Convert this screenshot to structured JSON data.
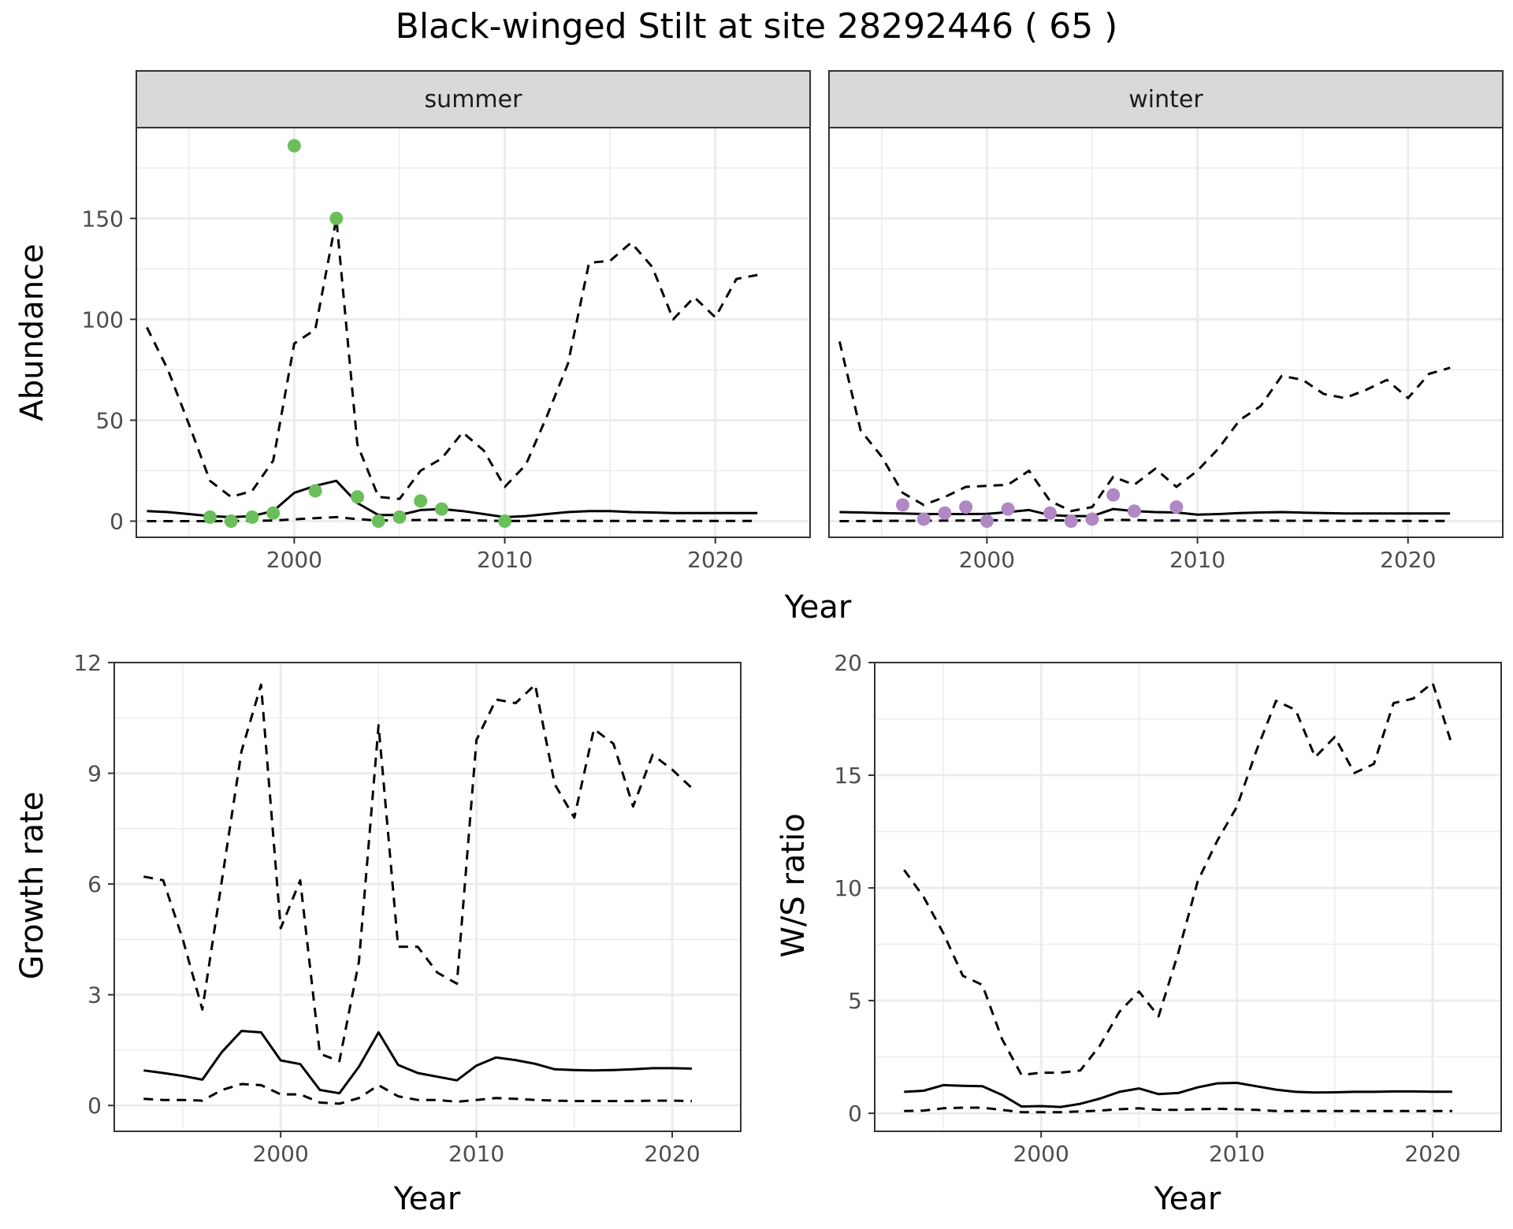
{
  "title": "Black-winged Stilt at site 28292446 ( 65 )",
  "colors": {
    "summer_points": "#6abf5a",
    "winter_points": "#b088c4",
    "lines": "#000000",
    "strip_fill": "#d9d9d9",
    "grid": "#ebebeb"
  },
  "chart_data": [
    {
      "type": "line",
      "panel": "abundance",
      "facets": [
        "summer",
        "winter"
      ],
      "xlabel": "Year",
      "ylabel": "Abundance",
      "xlim": [
        1992.5,
        2024.5
      ],
      "ylim": [
        -8,
        195
      ],
      "xticks": [
        2000,
        2010,
        2020
      ],
      "yticks": [
        0,
        50,
        100,
        150
      ],
      "series": {
        "summer": {
          "observed": {
            "x": [
              1996,
              1997,
              1998,
              1999,
              2000,
              2001,
              2002,
              2003,
              2004,
              2005,
              2006,
              2007,
              2010
            ],
            "y": [
              2,
              0,
              2,
              4,
              186,
              15,
              150,
              12,
              0,
              2,
              10,
              6,
              0
            ]
          },
          "mean": {
            "x": [
              1993,
              1994,
              1995,
              1996,
              1997,
              1998,
              1999,
              2000,
              2001,
              2002,
              2003,
              2004,
              2005,
              2006,
              2007,
              2008,
              2009,
              2010,
              2011,
              2012,
              2013,
              2014,
              2015,
              2016,
              2017,
              2018,
              2019,
              2020,
              2021,
              2022
            ],
            "y": [
              5,
              4.5,
              3.5,
              2.5,
              2,
              2.5,
              5,
              14,
              17.5,
              20,
              9,
              3,
              3,
              5.5,
              6,
              5,
              3.5,
              2,
              2.5,
              3.5,
              4.5,
              5,
              5,
              4.5,
              4.3,
              4,
              4,
              4,
              4,
              4
            ]
          },
          "upper": {
            "x": [
              1993,
              1994,
              1995,
              1996,
              1997,
              1998,
              1999,
              2000,
              2001,
              2002,
              2003,
              2004,
              2005,
              2006,
              2007,
              2008,
              2009,
              2010,
              2011,
              2012,
              2013,
              2014,
              2015,
              2016,
              2017,
              2018,
              2019,
              2020,
              2021,
              2022
            ],
            "y": [
              96,
              75,
              48,
              20,
              12,
              15,
              30,
              88,
              95,
              150,
              38,
              12,
              11,
              25,
              31,
              44,
              35,
              17,
              28,
              52,
              78,
              128,
              129,
              138,
              126,
              100,
              111,
              101,
              120,
              122
            ]
          },
          "lower": {
            "x": [
              1993,
              1996,
              1999,
              2001,
              2002,
              2003,
              2004,
              2006,
              2008,
              2010,
              2022
            ],
            "y": [
              0,
              0,
              0.3,
              1.5,
              2,
              1,
              0.3,
              0.6,
              0.5,
              0.1,
              0.1
            ]
          }
        },
        "winter": {
          "observed": {
            "x": [
              1996,
              1997,
              1998,
              1999,
              2000,
              2001,
              2003,
              2004,
              2005,
              2006,
              2007,
              2009
            ],
            "y": [
              8,
              1,
              4,
              7,
              0,
              6,
              4,
              0,
              1,
              13,
              5,
              7
            ]
          },
          "mean": {
            "x": [
              1993,
              1994,
              1995,
              1996,
              1997,
              1998,
              1999,
              2000,
              2001,
              2002,
              2003,
              2004,
              2005,
              2006,
              2007,
              2008,
              2009,
              2010,
              2011,
              2012,
              2013,
              2014,
              2015,
              2016,
              2017,
              2018,
              2019,
              2020,
              2021,
              2022
            ],
            "y": [
              4.5,
              4.3,
              4,
              3.8,
              3.5,
              3.5,
              3.5,
              3.6,
              4.5,
              5.5,
              3,
              2.5,
              2.5,
              6,
              5,
              4.5,
              4.3,
              3.2,
              3.5,
              4,
              4.3,
              4.5,
              4.2,
              4,
              3.8,
              3.8,
              3.8,
              3.8,
              3.8,
              3.8
            ]
          },
          "upper": {
            "x": [
              1993,
              1994,
              1995,
              1996,
              1997,
              1998,
              1999,
              2000,
              2001,
              2002,
              2003,
              2004,
              2005,
              2006,
              2007,
              2008,
              2009,
              2010,
              2011,
              2012,
              2013,
              2014,
              2015,
              2016,
              2017,
              2018,
              2019,
              2020,
              2021,
              2022
            ],
            "y": [
              89,
              45,
              32,
              14,
              8,
              12,
              17,
              17.5,
              18,
              25,
              10,
              5,
              7,
              22,
              18,
              26,
              17,
              25,
              36,
              50,
              57,
              72,
              70,
              63,
              61,
              65,
              70,
              61,
              73,
              76
            ]
          },
          "lower": {
            "x": [
              1993,
              1999,
              2001,
              2003,
              2005,
              2006,
              2008,
              2022
            ],
            "y": [
              0,
              0.3,
              0.5,
              0.4,
              0.3,
              0.7,
              0.3,
              0.1
            ]
          }
        }
      }
    },
    {
      "type": "line",
      "panel": "growth",
      "xlabel": "Year",
      "ylabel": "Growth rate",
      "xlim": [
        1991.5,
        2023.5
      ],
      "ylim": [
        -0.7,
        12
      ],
      "xticks": [
        2000,
        2010,
        2020
      ],
      "yticks": [
        0,
        3,
        6,
        9,
        12
      ],
      "series": {
        "mean": {
          "x": [
            1993,
            1994,
            1995,
            1996,
            1997,
            1998,
            1999,
            2000,
            2001,
            2002,
            2003,
            2004,
            2005,
            2006,
            2007,
            2008,
            2009,
            2010,
            2011,
            2012,
            2013,
            2014,
            2015,
            2016,
            2017,
            2018,
            2019,
            2020,
            2021
          ],
          "y": [
            0.95,
            0.88,
            0.8,
            0.7,
            1.45,
            2.02,
            1.98,
            1.22,
            1.12,
            0.42,
            0.33,
            1.05,
            1.98,
            1.1,
            0.88,
            0.78,
            0.68,
            1.08,
            1.3,
            1.23,
            1.13,
            0.98,
            0.96,
            0.95,
            0.96,
            0.98,
            1.01,
            1.01,
            1.0
          ]
        },
        "upper": {
          "x": [
            1993,
            1994,
            1995,
            1996,
            1997,
            1998,
            1999,
            2000,
            2001,
            2002,
            2003,
            2004,
            2005,
            2006,
            2007,
            2008,
            2009,
            2010,
            2011,
            2012,
            2013,
            2014,
            2015,
            2016,
            2017,
            2018,
            2019,
            2020,
            2021
          ],
          "y": [
            6.2,
            6.1,
            4.5,
            2.6,
            6.1,
            9.6,
            11.4,
            4.8,
            6.1,
            1.4,
            1.2,
            3.9,
            10.3,
            4.3,
            4.3,
            3.6,
            3.3,
            9.9,
            11.0,
            10.9,
            11.4,
            8.7,
            7.8,
            10.2,
            9.8,
            8.1,
            9.5,
            9.1,
            8.6
          ]
        },
        "lower": {
          "x": [
            1993,
            1994,
            1995,
            1996,
            1997,
            1998,
            1999,
            2000,
            2001,
            2002,
            2003,
            2004,
            2005,
            2006,
            2007,
            2008,
            2009,
            2010,
            2011,
            2012,
            2013,
            2014,
            2015,
            2016,
            2017,
            2018,
            2019,
            2020,
            2021
          ],
          "y": [
            0.18,
            0.15,
            0.15,
            0.13,
            0.42,
            0.58,
            0.55,
            0.3,
            0.3,
            0.08,
            0.05,
            0.2,
            0.55,
            0.25,
            0.15,
            0.15,
            0.1,
            0.15,
            0.2,
            0.18,
            0.15,
            0.13,
            0.12,
            0.12,
            0.12,
            0.12,
            0.13,
            0.13,
            0.12
          ]
        }
      }
    },
    {
      "type": "line",
      "panel": "ws_ratio",
      "xlabel": "Year",
      "ylabel": "W/S ratio",
      "xlim": [
        1991.5,
        2023.5
      ],
      "ylim": [
        -0.8,
        20
      ],
      "xticks": [
        2000,
        2010,
        2020
      ],
      "yticks": [
        0,
        5,
        10,
        15,
        20
      ],
      "series": {
        "mean": {
          "x": [
            1993,
            1994,
            1995,
            1996,
            1997,
            1998,
            1999,
            2000,
            2001,
            2002,
            2003,
            2004,
            2005,
            2006,
            2007,
            2008,
            2009,
            2010,
            2011,
            2012,
            2013,
            2014,
            2015,
            2016,
            2017,
            2018,
            2019,
            2020,
            2021
          ],
          "y": [
            0.95,
            1.0,
            1.25,
            1.22,
            1.2,
            0.82,
            0.3,
            0.32,
            0.28,
            0.42,
            0.65,
            0.95,
            1.1,
            0.85,
            0.9,
            1.15,
            1.33,
            1.35,
            1.2,
            1.05,
            0.95,
            0.92,
            0.93,
            0.95,
            0.95,
            0.97,
            0.97,
            0.96,
            0.96
          ]
        },
        "upper": {
          "x": [
            1993,
            1994,
            1995,
            1996,
            1997,
            1998,
            1999,
            2000,
            2001,
            2002,
            2003,
            2004,
            2005,
            2006,
            2007,
            2008,
            2009,
            2010,
            2011,
            2012,
            2013,
            2014,
            2015,
            2016,
            2017,
            2018,
            2019,
            2020,
            2021
          ],
          "y": [
            10.8,
            9.6,
            8.0,
            6.1,
            5.7,
            3.3,
            1.7,
            1.8,
            1.8,
            1.9,
            3.0,
            4.5,
            5.4,
            4.3,
            7.1,
            10.3,
            12.1,
            13.6,
            16.1,
            18.3,
            17.9,
            15.8,
            16.7,
            15.1,
            15.5,
            18.2,
            18.4,
            19.1,
            16.3
          ]
        },
        "lower": {
          "x": [
            1993,
            1994,
            1995,
            1996,
            1997,
            1998,
            1999,
            2000,
            2001,
            2002,
            2003,
            2004,
            2005,
            2006,
            2007,
            2008,
            2009,
            2010,
            2011,
            2012,
            2013,
            2014,
            2015,
            2016,
            2017,
            2018,
            2019,
            2020,
            2021
          ],
          "y": [
            0.1,
            0.12,
            0.22,
            0.25,
            0.25,
            0.15,
            0.05,
            0.05,
            0.05,
            0.08,
            0.12,
            0.18,
            0.22,
            0.15,
            0.15,
            0.18,
            0.2,
            0.18,
            0.15,
            0.1,
            0.1,
            0.1,
            0.1,
            0.1,
            0.1,
            0.1,
            0.1,
            0.1,
            0.1
          ]
        }
      }
    }
  ]
}
